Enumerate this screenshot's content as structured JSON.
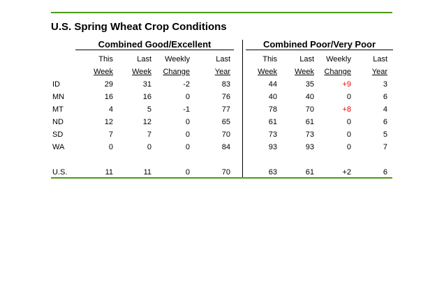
{
  "title": "U.S. Spring Wheat Crop Conditions",
  "colors": {
    "rule_green": "#4C9B17",
    "highlight_red": "#EE0000",
    "text": "#000000",
    "divider": "#000000"
  },
  "chart_data": {
    "type": "table",
    "title": "U.S. Spring Wheat Crop Conditions",
    "column_header_line1": [
      "This",
      "Last",
      "Weekly",
      "Last"
    ],
    "column_header_line2": [
      "Week",
      "Week",
      "Change",
      "Year"
    ],
    "row_labels": [
      "ID",
      "MN",
      "MT",
      "ND",
      "SD",
      "WA"
    ],
    "total_label": "U.S.",
    "sections": [
      {
        "header": "Combined Good/Excellent",
        "columns": [
          "This Week",
          "Last Week",
          "Weekly Change",
          "Last Year"
        ],
        "rows": [
          {
            "label": "ID",
            "values": [
              29,
              31,
              "-2",
              83
            ],
            "change_highlighted": false
          },
          {
            "label": "MN",
            "values": [
              16,
              16,
              0,
              76
            ],
            "change_highlighted": false
          },
          {
            "label": "MT",
            "values": [
              4,
              5,
              "-1",
              77
            ],
            "change_highlighted": false
          },
          {
            "label": "ND",
            "values": [
              12,
              12,
              0,
              65
            ],
            "change_highlighted": false
          },
          {
            "label": "SD",
            "values": [
              7,
              7,
              0,
              70
            ],
            "change_highlighted": false
          },
          {
            "label": "WA",
            "values": [
              0,
              0,
              0,
              84
            ],
            "change_highlighted": false
          }
        ],
        "total": {
          "label": "U.S.",
          "values": [
            11,
            11,
            0,
            70
          ],
          "change_highlighted": false
        }
      },
      {
        "header": "Combined Poor/Very Poor",
        "columns": [
          "This Week",
          "Last Week",
          "Weekly Change",
          "Last Year"
        ],
        "rows": [
          {
            "label": "ID",
            "values": [
              44,
              35,
              "+9",
              3
            ],
            "change_highlighted": true
          },
          {
            "label": "MN",
            "values": [
              40,
              40,
              0,
              6
            ],
            "change_highlighted": false
          },
          {
            "label": "MT",
            "values": [
              78,
              70,
              "+8",
              4
            ],
            "change_highlighted": true
          },
          {
            "label": "ND",
            "values": [
              61,
              61,
              0,
              6
            ],
            "change_highlighted": false
          },
          {
            "label": "SD",
            "values": [
              73,
              73,
              0,
              5
            ],
            "change_highlighted": false
          },
          {
            "label": "WA",
            "values": [
              93,
              93,
              0,
              7
            ],
            "change_highlighted": false
          }
        ],
        "total": {
          "label": "U.S.",
          "values": [
            63,
            61,
            "+2",
            6
          ],
          "change_highlighted": false
        }
      }
    ]
  }
}
